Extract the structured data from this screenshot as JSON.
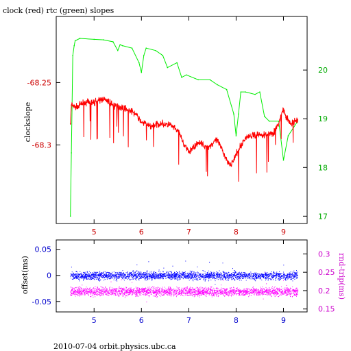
{
  "title": "clock (red) rtc (green) slopes",
  "footer": "2010-07-04  orbit.physics.ubc.ca",
  "colors": {
    "clock": "#ff0000",
    "rtc": "#00ee00",
    "offset": "#0000ff",
    "rndtrip": "#ff00ff",
    "axis": "#000000",
    "left_tick_top": "#cc0000",
    "right_tick_top": "#00aa00",
    "left_tick_bottom": "#0000cc",
    "right_tick_bottom": "#cc00cc"
  },
  "chart_data": [
    {
      "type": "line",
      "panel": "top",
      "xlabel": "",
      "ylabel": "clockslope",
      "ylabel_right": "",
      "xlim": [
        4.2,
        9.5
      ],
      "ylim": [
        -68.363,
        -68.197
      ],
      "ylim_right": [
        16.85,
        21.1
      ],
      "x_ticks": [
        5,
        6,
        7,
        8,
        9
      ],
      "x_tick_labels": [
        "5",
        "6",
        "7",
        "8",
        "9"
      ],
      "y_ticks": [
        -68.25,
        -68.3
      ],
      "y_tick_labels": [
        "-68.25",
        "-68.3"
      ],
      "y_right_ticks": [
        17,
        18,
        19,
        20
      ],
      "y_right_tick_labels": [
        "17",
        "18",
        "19",
        "20"
      ],
      "series": [
        {
          "name": "clock",
          "axis": "left",
          "x": [
            4.5,
            4.52,
            4.6,
            4.8,
            5.0,
            5.2,
            5.4,
            5.6,
            5.8,
            5.9,
            6.0,
            6.2,
            6.4,
            6.6,
            6.8,
            6.9,
            7.0,
            7.2,
            7.4,
            7.6,
            7.8,
            7.9,
            8.0,
            8.2,
            8.4,
            8.6,
            8.8,
            8.9,
            9.0,
            9.05,
            9.15,
            9.3
          ],
          "y": [
            -68.283,
            -68.268,
            -68.27,
            -68.266,
            -68.266,
            -68.263,
            -68.268,
            -68.27,
            -68.273,
            -68.276,
            -68.282,
            -68.285,
            -68.283,
            -68.284,
            -68.29,
            -68.3,
            -68.306,
            -68.298,
            -68.302,
            -68.296,
            -68.312,
            -68.316,
            -68.308,
            -68.294,
            -68.292,
            -68.292,
            -68.29,
            -68.283,
            -68.271,
            -68.278,
            -68.283,
            -68.28
          ]
        },
        {
          "name": "rtc",
          "axis": "right",
          "x": [
            4.5,
            4.52,
            4.55,
            4.58,
            4.6,
            4.7,
            5.0,
            5.2,
            5.4,
            5.5,
            5.55,
            5.6,
            5.8,
            5.95,
            6.0,
            6.05,
            6.1,
            6.3,
            6.45,
            6.55,
            6.75,
            6.85,
            6.95,
            7.2,
            7.45,
            7.6,
            7.8,
            7.95,
            8.0,
            8.05,
            8.1,
            8.2,
            8.4,
            8.5,
            8.6,
            8.7,
            8.9,
            9.0,
            9.1,
            9.3
          ],
          "y": [
            17.0,
            18.3,
            20.3,
            20.5,
            20.6,
            20.65,
            20.63,
            20.62,
            20.58,
            20.4,
            20.52,
            20.5,
            20.45,
            20.15,
            19.95,
            20.3,
            20.45,
            20.4,
            20.3,
            20.05,
            20.15,
            19.85,
            19.9,
            19.8,
            19.8,
            19.7,
            19.6,
            19.1,
            18.65,
            19.1,
            19.55,
            19.55,
            19.5,
            19.55,
            19.05,
            18.95,
            18.95,
            18.15,
            18.65,
            18.95
          ]
        }
      ]
    },
    {
      "type": "scatter",
      "panel": "bottom",
      "xlabel": "",
      "ylabel": "offset(ms)",
      "ylabel_right": "rnd-trip(ms)",
      "xlim": [
        4.2,
        9.5
      ],
      "ylim": [
        -0.07,
        0.068
      ],
      "ylim_right": [
        0.142,
        0.338
      ],
      "x_ticks": [
        5,
        6,
        7,
        8,
        9
      ],
      "x_tick_labels": [
        "5",
        "6",
        "7",
        "8",
        "9"
      ],
      "y_ticks": [
        0.05,
        0,
        -0.05
      ],
      "y_tick_labels": [
        "0.05",
        "0",
        "-0.05"
      ],
      "y_right_ticks": [
        0.15,
        0.2,
        0.25,
        0.3
      ],
      "y_right_tick_labels": [
        "0.15",
        "0.2",
        "0.25",
        "0.3"
      ],
      "series": [
        {
          "name": "offset",
          "axis": "left",
          "x_range": [
            4.5,
            9.3
          ],
          "center": 0.0,
          "spread": 0.008
        },
        {
          "name": "rnd-trip",
          "axis": "right",
          "x_range": [
            4.5,
            9.3
          ],
          "center": 0.198,
          "spread": 0.012
        }
      ]
    }
  ]
}
